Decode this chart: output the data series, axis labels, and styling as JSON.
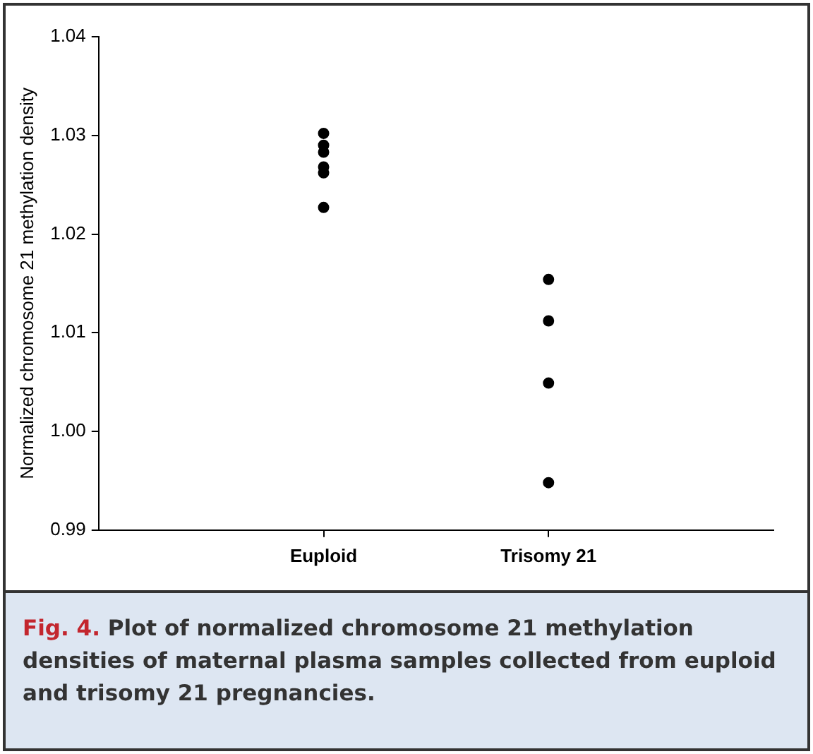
{
  "chart_data": {
    "type": "scatter",
    "ylabel": "Normalized chromosome 21 methylation density",
    "categories": [
      "Euploid",
      "Trisomy 21"
    ],
    "series": [
      {
        "color": "#000000",
        "x": [
          "Euploid",
          "Euploid",
          "Euploid",
          "Euploid",
          "Euploid",
          "Euploid",
          "Trisomy 21",
          "Trisomy 21",
          "Trisomy 21",
          "Trisomy 21"
        ],
        "values": [
          1.0302,
          1.029,
          1.0283,
          1.0268,
          1.0262,
          1.0227,
          1.0154,
          1.0112,
          1.0049,
          0.9948
        ]
      }
    ],
    "ylim": [
      0.99,
      1.04
    ],
    "yticks": [
      {
        "value": 0.99,
        "label": "0.99"
      },
      {
        "value": 1,
        "label": "1.00"
      },
      1.01,
      1.02,
      1.03,
      1.04
    ],
    "marker": "circle",
    "grid": false,
    "legend": false,
    "annotations": [
      "Fig. 4. Plot of normalized chromosome 21 methylation densities of maternal plasma samples collected from euploid and trisomy 21 pregnancies."
    ]
  }
}
